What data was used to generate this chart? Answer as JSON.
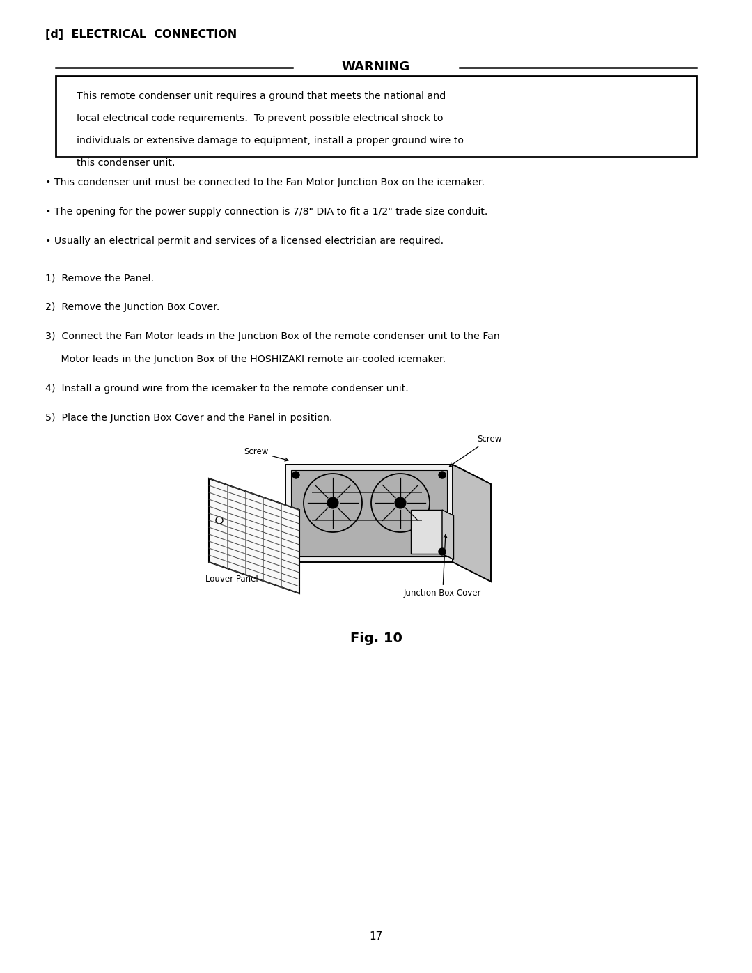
{
  "bg_color": "#ffffff",
  "page_width": 10.8,
  "page_height": 13.97,
  "section_title": "[d]  ELECTRICAL  CONNECTION",
  "warning_title": "WARNING",
  "warning_text_lines": [
    "This remote condenser unit requires a ground that meets the national and",
    "local electrical code requirements.  To prevent possible electrical shock to",
    "individuals or extensive damage to equipment, install a proper ground wire to",
    "this condenser unit."
  ],
  "bullets": [
    "• This condenser unit must be connected to the Fan Motor Junction Box on the icemaker.",
    "• The opening for the power supply connection is 7/8\" DIA to fit a 1/2\" trade size conduit.",
    "• Usually an electrical permit and services of a licensed electrician are required."
  ],
  "step1": "1)  Remove the Panel.",
  "step2": "2)  Remove the Junction Box Cover.",
  "step3a": "3)  Connect the Fan Motor leads in the Junction Box of the remote condenser unit to the Fan",
  "step3b": "     Motor leads in the Junction Box of the HOSHIZAKI remote air-cooled icemaker.",
  "step4": "4)  Install a ground wire from the icemaker to the remote condenser unit.",
  "step5": "5)  Place the Junction Box Cover and the Panel in position.",
  "fig_caption": "Fig. 10",
  "page_number": "17",
  "text_color": "#000000"
}
